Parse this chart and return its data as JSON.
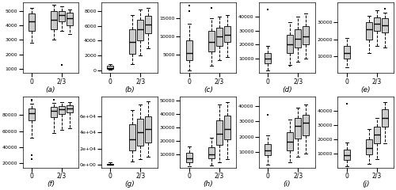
{
  "panels": [
    {
      "label": "(a)",
      "boxes": [
        {
          "q1": 3600,
          "median": 4300,
          "q3": 4800,
          "whislo": 2800,
          "whishi": 5200,
          "fliers": []
        },
        {
          "q1": 3700,
          "median": 4400,
          "q3": 5000,
          "whislo": 3000,
          "whishi": 5400,
          "fliers": []
        },
        {
          "q1": 4300,
          "median": 4700,
          "q3": 5000,
          "whislo": 3600,
          "whishi": 5300,
          "fliers": [
            1250
          ]
        },
        {
          "q1": 4000,
          "median": 4500,
          "q3": 4850,
          "whislo": 3400,
          "whishi": 5100,
          "fliers": []
        }
      ],
      "ylim": [
        700,
        5600
      ],
      "yticks": [
        1000,
        2000,
        3000,
        4000,
        5000
      ],
      "use_sci": false
    },
    {
      "label": "(b)",
      "boxes": [
        {
          "q1": 150,
          "median": 300,
          "q3": 600,
          "whislo": 50,
          "whishi": 800,
          "fliers": []
        },
        {
          "q1": 2200,
          "median": 3800,
          "q3": 5500,
          "whislo": 800,
          "whishi": 7500,
          "fliers": []
        },
        {
          "q1": 4000,
          "median": 5500,
          "q3": 6800,
          "whislo": 2000,
          "whishi": 8200,
          "fliers": []
        },
        {
          "q1": 5000,
          "median": 6200,
          "q3": 7300,
          "whislo": 3000,
          "whishi": 8400,
          "fliers": []
        }
      ],
      "ylim": [
        -400,
        9200
      ],
      "yticks": [
        0,
        2000,
        4000,
        6000,
        8000
      ],
      "use_sci": false
    },
    {
      "label": "(c)",
      "boxes": [
        {
          "q1": 3500,
          "median": 5500,
          "q3": 9000,
          "whislo": 800,
          "whishi": 13500,
          "fliers": [
            17000,
            18500
          ]
        },
        {
          "q1": 6000,
          "median": 8500,
          "q3": 11500,
          "whislo": 2000,
          "whishi": 15000,
          "fliers": [
            18000
          ]
        },
        {
          "q1": 7500,
          "median": 10000,
          "q3": 12500,
          "whislo": 3500,
          "whishi": 15500,
          "fliers": []
        },
        {
          "q1": 8500,
          "median": 10500,
          "q3": 13000,
          "whislo": 4500,
          "whishi": 16000,
          "fliers": []
        }
      ],
      "ylim": [
        0,
        19500
      ],
      "yticks": [
        5000,
        10000,
        15000
      ],
      "use_sci": false
    },
    {
      "label": "(d)",
      "boxes": [
        {
          "q1": 7000,
          "median": 10000,
          "q3": 14000,
          "whislo": 2000,
          "whishi": 19000,
          "fliers": [
            45000
          ]
        },
        {
          "q1": 14000,
          "median": 20000,
          "q3": 27000,
          "whislo": 6000,
          "whishi": 36000,
          "fliers": [
            5000
          ]
        },
        {
          "q1": 18000,
          "median": 24000,
          "q3": 31000,
          "whislo": 8000,
          "whishi": 40000,
          "fliers": []
        },
        {
          "q1": 20000,
          "median": 26000,
          "q3": 33000,
          "whislo": 10000,
          "whishi": 42000,
          "fliers": []
        }
      ],
      "ylim": [
        0,
        50000
      ],
      "yticks": [
        10000,
        20000,
        30000,
        40000
      ],
      "use_sci": false
    },
    {
      "label": "(e)",
      "boxes": [
        {
          "q1": 8500,
          "median": 12000,
          "q3": 16000,
          "whislo": 3500,
          "whishi": 21000,
          "fliers": []
        },
        {
          "q1": 20000,
          "median": 26000,
          "q3": 30000,
          "whislo": 12000,
          "whishi": 34000,
          "fliers": []
        },
        {
          "q1": 25000,
          "median": 29000,
          "q3": 33000,
          "whislo": 16000,
          "whishi": 37000,
          "fliers": []
        },
        {
          "q1": 24000,
          "median": 28500,
          "q3": 32500,
          "whislo": 15000,
          "whishi": 36000,
          "fliers": [
            38000
          ]
        }
      ],
      "ylim": [
        0,
        42000
      ],
      "yticks": [
        10000,
        20000,
        30000
      ],
      "use_sci": false
    },
    {
      "label": "(f)",
      "boxes": [
        {
          "q1": 74000,
          "median": 82000,
          "q3": 88000,
          "whislo": 52000,
          "whishi": 94000,
          "fliers": [
            30000,
            25000,
            98000,
            99000
          ]
        },
        {
          "q1": 78000,
          "median": 85000,
          "q3": 90000,
          "whislo": 58000,
          "whishi": 95000,
          "fliers": [
            99000
          ]
        },
        {
          "q1": 81000,
          "median": 87000,
          "q3": 91500,
          "whislo": 62000,
          "whishi": 96000,
          "fliers": []
        },
        {
          "q1": 83000,
          "median": 88000,
          "q3": 92000,
          "whislo": 64000,
          "whishi": 96500,
          "fliers": []
        }
      ],
      "ylim": [
        15000,
        103000
      ],
      "yticks": [
        20000,
        40000,
        60000,
        80000
      ],
      "use_sci": false
    },
    {
      "label": "(g)",
      "boxes": [
        {
          "q1": 200,
          "median": 500,
          "q3": 1500,
          "whislo": 50,
          "whishi": 3000,
          "fliers": []
        },
        {
          "q1": 18000,
          "median": 32000,
          "q3": 50000,
          "whislo": 4000,
          "whishi": 68000,
          "fliers": []
        },
        {
          "q1": 24000,
          "median": 40000,
          "q3": 57000,
          "whislo": 7000,
          "whishi": 74000,
          "fliers": []
        },
        {
          "q1": 28000,
          "median": 44000,
          "q3": 60000,
          "whislo": 10000,
          "whishi": 78000,
          "fliers": []
        }
      ],
      "ylim": [
        -3000,
        84000
      ],
      "yticks": [
        0,
        20000,
        40000,
        60000
      ],
      "use_sci": true,
      "sci_max": 60000
    },
    {
      "label": "(h)",
      "boxes": [
        {
          "q1": 4000,
          "median": 7000,
          "q3": 11000,
          "whislo": 800,
          "whishi": 16000,
          "fliers": []
        },
        {
          "q1": 7000,
          "median": 10000,
          "q3": 15000,
          "whislo": 1500,
          "whishi": 22000,
          "fliers": []
        },
        {
          "q1": 17000,
          "median": 25000,
          "q3": 35000,
          "whislo": 4000,
          "whishi": 47000,
          "fliers": []
        },
        {
          "q1": 21000,
          "median": 29000,
          "q3": 39000,
          "whislo": 6000,
          "whishi": 49000,
          "fliers": []
        }
      ],
      "ylim": [
        0,
        53000
      ],
      "yticks": [
        10000,
        20000,
        30000,
        40000,
        50000
      ],
      "use_sci": false
    },
    {
      "label": "(i)",
      "boxes": [
        {
          "q1": 8000,
          "median": 11000,
          "q3": 15000,
          "whislo": 2000,
          "whishi": 21000,
          "fliers": [
            34000
          ]
        },
        {
          "q1": 11000,
          "median": 17000,
          "q3": 23000,
          "whislo": 3500,
          "whishi": 31000,
          "fliers": []
        },
        {
          "q1": 19000,
          "median": 27000,
          "q3": 32000,
          "whislo": 7000,
          "whishi": 39000,
          "fliers": []
        },
        {
          "q1": 21000,
          "median": 29000,
          "q3": 34000,
          "whislo": 9000,
          "whishi": 41000,
          "fliers": []
        }
      ],
      "ylim": [
        0,
        46000
      ],
      "yticks": [
        10000,
        20000,
        30000,
        40000
      ],
      "use_sci": false
    },
    {
      "label": "(j)",
      "boxes": [
        {
          "q1": 5500,
          "median": 8500,
          "q3": 12500,
          "whislo": 800,
          "whishi": 17500,
          "fliers": [
            45000
          ]
        },
        {
          "q1": 9000,
          "median": 14000,
          "q3": 20000,
          "whislo": 2500,
          "whishi": 27000,
          "fliers": []
        },
        {
          "q1": 17000,
          "median": 23000,
          "q3": 29000,
          "whislo": 6000,
          "whishi": 35000,
          "fliers": []
        },
        {
          "q1": 29000,
          "median": 35000,
          "q3": 41000,
          "whislo": 17000,
          "whishi": 46000,
          "fliers": []
        }
      ],
      "ylim": [
        0,
        50000
      ],
      "yticks": [
        10000,
        20000,
        30000,
        40000
      ],
      "use_sci": false
    }
  ],
  "x_positions": [
    0.75,
    1.85,
    2.25,
    2.65
  ],
  "x_tick_pos": [
    0.75,
    2.25
  ],
  "x_tick_labels": [
    "0",
    "2/3"
  ],
  "x_lim": [
    0.3,
    3.1
  ],
  "box_width": 0.32,
  "box_color": "#cccccc",
  "median_color": "black",
  "whisker_color": "black",
  "flier_color": "black",
  "fig_bg": "white"
}
